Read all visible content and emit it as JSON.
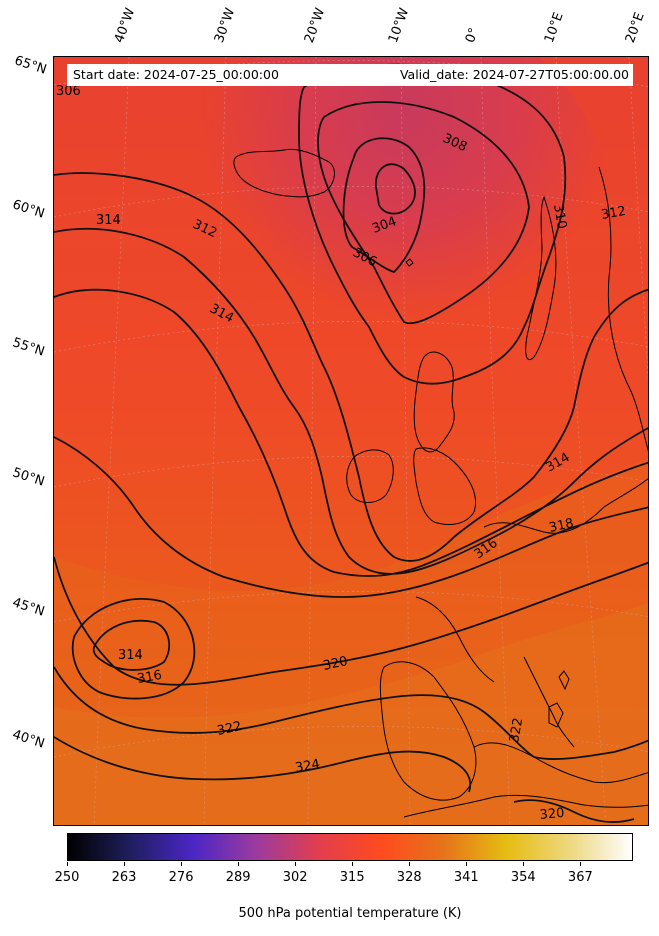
{
  "header": {
    "start_date": "Start date: 2024-07-25_00:00:00",
    "valid_date": "Valid_date: 2024-07-27T05:00:00.00"
  },
  "longitude_labels": [
    "40°W",
    "30°W",
    "20°W",
    "10°W",
    "0°",
    "10°E",
    "20°E"
  ],
  "latitude_labels": [
    "65°N",
    "60°N",
    "55°N",
    "50°N",
    "45°N",
    "40°N"
  ],
  "contour_labels": [
    "306",
    "308",
    "304",
    "306",
    "310",
    "312",
    "314",
    "312",
    "314",
    "314",
    "316",
    "314",
    "318",
    "316",
    "320",
    "322",
    "324",
    "322",
    "320"
  ],
  "colorbar": {
    "label": "500 hPa potential temperature (K)",
    "ticks": [
      "250",
      "263",
      "276",
      "289",
      "302",
      "315",
      "328",
      "341",
      "354",
      "367"
    ],
    "range": [
      250,
      379
    ],
    "colormap": "CMRmap",
    "colors": [
      "#000000",
      "#1f1f5f",
      "#4b26c6",
      "#9b3b9e",
      "#e23e4e",
      "#ff4b1e",
      "#e6741a",
      "#e6bd12",
      "#eed77e",
      "#fefefe"
    ]
  },
  "map": {
    "field": "500 hPa potential temperature",
    "units": "K",
    "fill_colors": [
      "#c93a5a",
      "#de3d4a",
      "#f24433",
      "#f04c25",
      "#ec5a1a",
      "#e8661a",
      "#e4701a"
    ],
    "contour_values": [
      304,
      306,
      308,
      310,
      312,
      314,
      316,
      318,
      320,
      322,
      324
    ],
    "contour_color": "#111111",
    "coastline_color": "#000000",
    "gridlines": true
  }
}
